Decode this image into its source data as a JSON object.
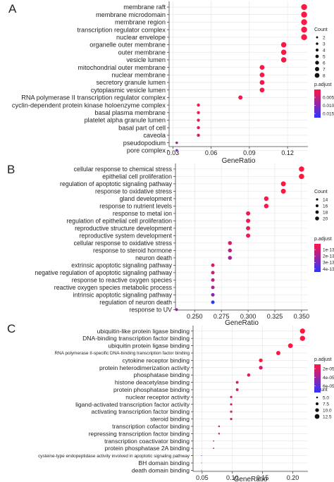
{
  "chart_data": [
    {
      "type": "scatter",
      "panel": "A",
      "xlabel": "GeneRatio",
      "xticks": [
        0.03,
        0.06,
        0.09,
        0.12
      ],
      "xtick_labels": [
        "0.03",
        "0.06",
        "0.09",
        "0.12"
      ],
      "xlim": [
        0.027,
        0.136
      ],
      "grid": true,
      "categories": [
        "membrane raft",
        "membrane microdomain",
        "membrane region",
        "transcription regulator complex",
        "nuclear envelope",
        "organelle outer membrane",
        "outer membrane",
        "vesicle lumen",
        "mitochondrial outer membrane",
        "nuclear membrane",
        "secretory granule lumen",
        "cytoplasmic vesicle lumen",
        "RNA polymerase II transcription regulator complex",
        "cyclin-dependent protein kinase holoenzyme complex",
        "basal plasma membrane",
        "platelet alpha granule lumen",
        "basal part of cell",
        "caveola",
        "pseudopodium",
        "pore complex"
      ],
      "x": [
        0.133,
        0.133,
        0.133,
        0.133,
        0.133,
        0.117,
        0.117,
        0.117,
        0.1,
        0.1,
        0.1,
        0.1,
        0.083,
        0.05,
        0.05,
        0.05,
        0.05,
        0.05,
        0.033,
        0.033
      ],
      "count": [
        8,
        8,
        8,
        8,
        8,
        7,
        7,
        7,
        6,
        6,
        6,
        6,
        5,
        3,
        3,
        3,
        3,
        3,
        2,
        2
      ],
      "p_adjust": [
        0.0002,
        0.0002,
        0.0003,
        0.0005,
        0.0006,
        0.0005,
        0.0005,
        0.0007,
        0.0007,
        0.0008,
        0.0009,
        0.001,
        0.0012,
        0.0008,
        0.0012,
        0.0015,
        0.0025,
        0.0045,
        0.0075,
        0.0115
      ],
      "legend": {
        "count_title": "Count",
        "count_labels": [
          "2",
          "3",
          "4",
          "5",
          "6",
          "7",
          "8"
        ],
        "count_values": [
          2,
          3,
          4,
          5,
          6,
          7,
          8
        ],
        "color_title": "p.adjust",
        "color_labels": [
          "0.005",
          "0.010",
          "0.015"
        ],
        "color_values": [
          0.005,
          0.01,
          0.015
        ],
        "color_range": [
          0.0002,
          0.0175
        ],
        "color_low": "#ff1744",
        "color_high": "#2a35ff",
        "position": "right"
      }
    },
    {
      "type": "scatter",
      "panel": "B",
      "xlabel": "GeneRatio",
      "xticks": [
        0.25,
        0.275,
        0.3,
        0.325,
        0.35
      ],
      "xtick_labels": [
        "0.250",
        "0.275",
        "0.300",
        "0.325",
        "0.350"
      ],
      "xlim": [
        0.232,
        0.356
      ],
      "grid": true,
      "categories": [
        "cellular response to chemical stress",
        "epithelial cell proliferation",
        "regulation of apoptotic signaling pathway",
        "response to oxidative stress",
        "gland development",
        "response to nutrient levels",
        "response to metal ion",
        "regulation of epithelial cell proliferation",
        "reproductive structure development",
        "reproductive system development",
        "cellular response to oxidative stress",
        "response to steroid hormone",
        "neuron death",
        "extrinsic apoptotic signaling pathway",
        "negative regulation of apoptotic signaling pathway",
        "response to reactive oxygen species",
        "reactive oxygen species metabolic process",
        "intrinsic apoptotic signaling pathway",
        "regulation of neuron death",
        "response to UV"
      ],
      "x": [
        0.35,
        0.35,
        0.333,
        0.333,
        0.317,
        0.317,
        0.3,
        0.3,
        0.3,
        0.3,
        0.283,
        0.283,
        0.283,
        0.267,
        0.267,
        0.267,
        0.267,
        0.267,
        0.267,
        0.233
      ],
      "count": [
        21,
        21,
        20,
        20,
        19,
        19,
        18,
        18,
        18,
        18,
        17,
        17,
        17,
        16,
        16,
        16,
        16,
        16,
        16,
        14
      ],
      "p_adjust": [
        1e-14,
        1e-14,
        1e-14,
        1e-14,
        2e-14,
        2e-14,
        3e-14,
        4e-14,
        5e-14,
        5e-14,
        1e-13,
        1.5e-13,
        2e-13,
        1e-13,
        1.2e-13,
        1.5e-13,
        1.8e-13,
        2.5e-13,
        4.4e-13,
        2.2e-13
      ],
      "legend": {
        "count_title": "Count",
        "count_labels": [
          "14",
          "16",
          "18",
          "20"
        ],
        "count_values": [
          14,
          16,
          18,
          20
        ],
        "color_title": "p.adjust",
        "color_labels": [
          "1e-13",
          "2e-13",
          "3e-13",
          "4e-13"
        ],
        "color_values": [
          1e-13,
          2e-13,
          3e-13,
          4e-13
        ],
        "color_range": [
          1e-14,
          4.5e-13
        ],
        "color_low": "#ff1744",
        "color_high": "#2a35ff",
        "position": "right"
      }
    },
    {
      "type": "scatter",
      "panel": "C",
      "xlabel": "GeneRatio",
      "xticks": [
        0.05,
        0.1,
        0.15,
        0.2
      ],
      "xtick_labels": [
        "0.05",
        "0.10",
        "0.15",
        "0.20"
      ],
      "xlim": [
        0.035,
        0.225
      ],
      "grid": true,
      "categories": [
        "ubiquitin-like protein ligase binding",
        "DNA-binding transcription factor binding",
        "ubiquitin protein ligase binding",
        "RNA polymerase II-specific DNA-binding transcription factor binding",
        "cytokine receptor binding",
        "protein heterodimerization activity",
        "phosphatase binding",
        "histone deacetylase binding",
        "protein phosphatase binding",
        "nuclear receptor activity",
        "ligand-activated transcription factor activity",
        "activating transcription factor binding",
        "steroid binding",
        "transcription cofactor binding",
        "repressing transcription factor binding",
        "transcription coactivator binding",
        "protein phosphatase 2A binding",
        "cysteine-type endopeptidase activity involved in apoptotic signaling pathway",
        "BH domain binding",
        "death domain binding"
      ],
      "x": [
        0.216,
        0.216,
        0.196,
        0.176,
        0.147,
        0.147,
        0.127,
        0.108,
        0.108,
        0.098,
        0.098,
        0.098,
        0.098,
        0.078,
        0.078,
        0.069,
        0.069,
        0.049,
        0.049,
        0.049
      ],
      "count": [
        11,
        11,
        10,
        9,
        8,
        8,
        7,
        6,
        6,
        5,
        5,
        5,
        5,
        4,
        4,
        3,
        3,
        2,
        2,
        2
      ],
      "p_adjust": [
        1e-05,
        1e-05,
        1e-05,
        1e-05,
        1e-05,
        2e-05,
        2e-05,
        2e-05,
        2e-05,
        2e-05,
        2e-05,
        2e-05,
        2e-05,
        2e-05,
        3e-05,
        3e-05,
        3e-05,
        6e-05,
        6.5e-05,
        7e-05
      ],
      "legend": {
        "count_title": "Count",
        "count_labels": [
          "5.0",
          "7.5",
          "10.0",
          "12.5"
        ],
        "count_values": [
          5,
          7.5,
          10,
          12.5
        ],
        "color_title": "p.adjust",
        "color_labels": [
          "2e-05",
          "4e-05",
          "6e-05"
        ],
        "color_values": [
          2e-05,
          4e-05,
          6e-05
        ],
        "color_range": [
          1e-05,
          7.5e-05
        ],
        "color_low": "#ff1744",
        "color_high": "#2a35ff",
        "position": "right"
      }
    }
  ],
  "panels": {
    "a": {
      "letter": "A"
    },
    "b": {
      "letter": "B"
    },
    "c": {
      "letter": "C"
    }
  }
}
